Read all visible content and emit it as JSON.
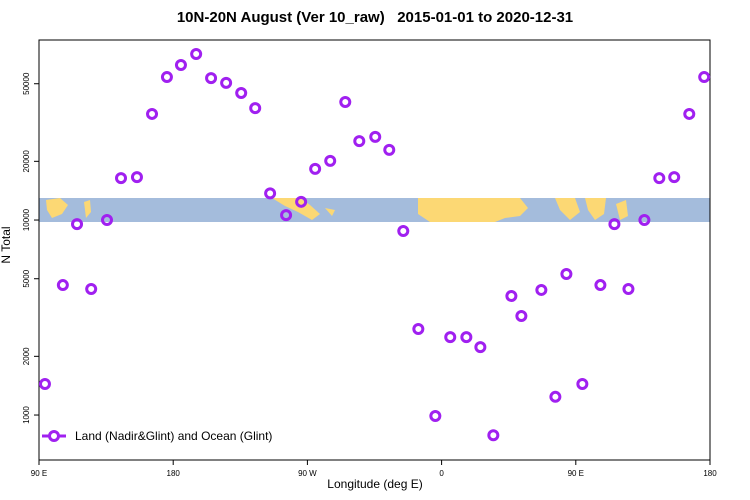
{
  "chart_data": {
    "type": "scatter",
    "title": "10N-20N August (Ver 10_raw)   2015-01-01 to 2020-12-31",
    "x_label": "Longitude (deg E)",
    "y_label": "N Total",
    "yscale": "log",
    "xlim": [
      90,
      540
    ],
    "ylim": [
      588,
      83800
    ],
    "xticks": [
      {
        "value": 90,
        "label": "90 E"
      },
      180,
      {
        "value": 270,
        "label": "90 W"
      },
      {
        "value": 360,
        "label": "0"
      },
      {
        "value": 450,
        "label": "90 E"
      },
      {
        "value": 540,
        "label": "180"
      }
    ],
    "yticks": [
      1000,
      2000,
      5000,
      10000,
      20000,
      50000
    ],
    "legend_position": "bottom-left",
    "series": [
      {
        "name": "Land (Nadir&Glint) and Ocean (Glint)",
        "color": "#a020f0",
        "x": [
          94,
          106,
          115.5,
          125,
          135.6,
          145,
          155.7,
          165.8,
          175.8,
          185.2,
          195.4,
          205.4,
          215.5,
          225.6,
          235,
          245,
          255.7,
          265.8,
          275.2,
          285.3,
          295.4,
          304.8,
          315.5,
          324.9,
          334.3,
          344.4,
          355.8,
          365.8,
          376.6,
          386,
          394.7,
          406.8,
          413.5,
          426.9,
          436.3,
          443.7,
          454.4,
          466.5,
          475.9,
          485.3,
          496,
          506,
          516,
          526.1,
          536.1
        ],
        "values": [
          1443,
          4640,
          9530,
          4430,
          10000,
          16400,
          16600,
          35000,
          54100,
          62400,
          71000,
          53400,
          50500,
          44800,
          37500,
          13700,
          10600,
          12400,
          18300,
          20100,
          40300,
          25400,
          26700,
          22900,
          8790,
          2760,
          988,
          2510,
          2510,
          2230,
          788,
          4080,
          3220,
          4380,
          1240,
          5290,
          1443,
          4640,
          9530,
          4430,
          10000,
          16400,
          16600,
          35000,
          54100
        ]
      }
    ]
  }
}
